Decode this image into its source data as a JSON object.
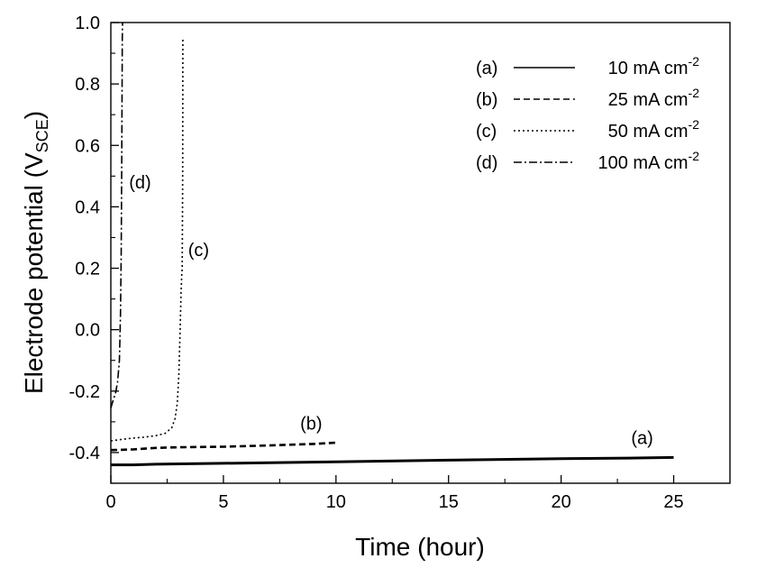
{
  "chart_data": {
    "type": "line",
    "title": "",
    "xlabel": "Time (hour)",
    "ylabel": {
      "main": "Electrode potential (V",
      "sub": "SCE",
      "close": ")"
    },
    "xlim": [
      0,
      27.5
    ],
    "ylim": [
      -0.5,
      1.0
    ],
    "xticks": [
      0,
      5,
      10,
      15,
      20,
      25
    ],
    "yticks": [
      1.0,
      0.8,
      0.6,
      0.4,
      0.2,
      0.0,
      -0.2,
      -0.4
    ],
    "xtick_labels": [
      "0",
      "5",
      "10",
      "15",
      "20",
      "25"
    ],
    "ytick_labels": [
      "1.0",
      "0.8",
      "0.6",
      "0.4",
      "0.2",
      "0.0",
      "-0.2",
      "-0.4"
    ],
    "grid": false,
    "legend_position": "top-right",
    "series": [
      {
        "id": "a",
        "legend_tag": "(a)",
        "legend_value": "10 mA cm",
        "legend_exp": "-2",
        "dash": "solid",
        "x": [
          0,
          1,
          2,
          5,
          10,
          15,
          20,
          23,
          25
        ],
        "y": [
          -0.44,
          -0.44,
          -0.438,
          -0.435,
          -0.43,
          -0.425,
          -0.42,
          -0.418,
          -0.416
        ]
      },
      {
        "id": "b",
        "legend_tag": "(b)",
        "legend_value": "25 mA cm",
        "legend_exp": "-2",
        "dash": "dash",
        "x": [
          0,
          1,
          2,
          3,
          5,
          7,
          9,
          10
        ],
        "y": [
          -0.392,
          -0.39,
          -0.385,
          -0.383,
          -0.381,
          -0.377,
          -0.372,
          -0.368
        ]
      },
      {
        "id": "c",
        "legend_tag": "(c)",
        "legend_value": "50 mA cm",
        "legend_exp": "-2",
        "dash": "dot",
        "x": [
          0,
          0.5,
          1,
          1.5,
          2,
          2.4,
          2.7,
          2.85,
          2.95,
          3.02,
          3.08,
          3.12,
          3.15,
          3.17,
          3.19,
          3.2
        ],
        "y": [
          -0.362,
          -0.357,
          -0.353,
          -0.35,
          -0.345,
          -0.338,
          -0.32,
          -0.29,
          -0.24,
          -0.15,
          0.0,
          0.12,
          0.18,
          0.2,
          0.5,
          0.95
        ]
      },
      {
        "id": "d",
        "legend_tag": "(d)",
        "legend_value": "100 mA cm",
        "legend_exp": "-2",
        "dash": "dashdot",
        "x": [
          0,
          0.1,
          0.2,
          0.3,
          0.38,
          0.43,
          0.46,
          0.48,
          0.5,
          0.51,
          0.52
        ],
        "y": [
          -0.255,
          -0.23,
          -0.21,
          -0.17,
          -0.1,
          0.05,
          0.25,
          0.5,
          0.8,
          0.95,
          1.0
        ]
      }
    ],
    "annotations": [
      {
        "id": "d",
        "text": "(d)",
        "x": 1.3,
        "y": 0.46
      },
      {
        "id": "c",
        "text": "(c)",
        "x": 3.9,
        "y": 0.24
      },
      {
        "id": "b",
        "text": "(b)",
        "x": 8.9,
        "y": -0.325
      },
      {
        "id": "a",
        "text": "(a)",
        "x": 23.6,
        "y": -0.372
      }
    ]
  }
}
